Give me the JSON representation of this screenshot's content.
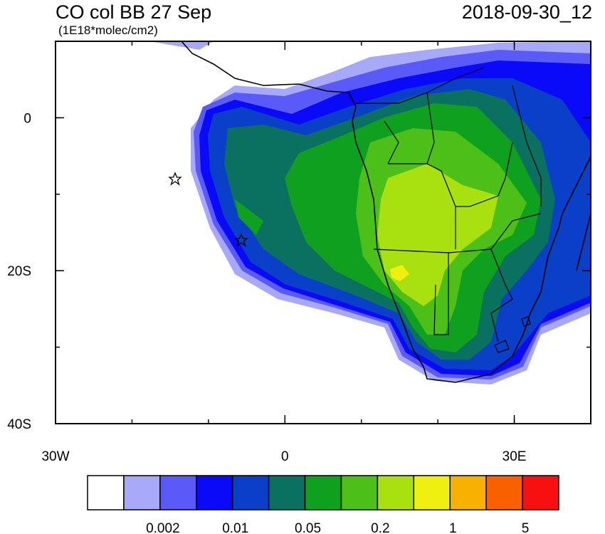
{
  "title": "CO col BB 27 Sep",
  "subtitle": "(1E18*molec/cm2)",
  "date": "2018-09-30_12",
  "map": {
    "xlim": [
      -30,
      40
    ],
    "ylim": [
      -40,
      10
    ],
    "xticks": [
      {
        "value": -30,
        "label": "30W"
      },
      0,
      {
        "value": 30,
        "label": "30E"
      }
    ],
    "yticks": [
      0,
      {
        "value": -20,
        "label": "20S"
      },
      {
        "value": -40,
        "label": "40S"
      }
    ]
  },
  "colorbar": {
    "colors": [
      "#ffffff",
      "#a8a8f8",
      "#5a5af8",
      "#0a0af8",
      "#0a40c8",
      "#0a7060",
      "#10a020",
      "#4cc018",
      "#a8e010",
      "#f0f010",
      "#f8b000",
      "#f86000",
      "#f81010"
    ],
    "labels": [
      "0.002",
      "0.01",
      "0.05",
      "0.2",
      "1",
      "5"
    ]
  }
}
